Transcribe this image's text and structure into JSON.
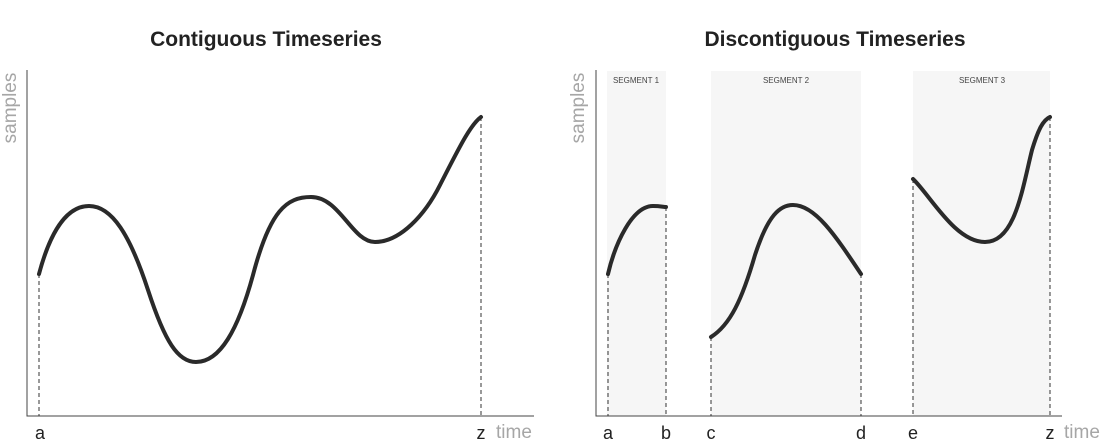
{
  "left_panel": {
    "title": "Contiguous Timeseries",
    "y_axis_label": "samples",
    "x_axis_label": "time",
    "tick_labels": [
      "a",
      "z"
    ]
  },
  "right_panel": {
    "title": "Discontiguous Timeseries",
    "y_axis_label": "samples",
    "x_axis_label": "time",
    "segments": [
      {
        "label": "SEGMENT 1"
      },
      {
        "label": "SEGMENT 2"
      },
      {
        "label": "SEGMENT 3"
      }
    ],
    "tick_labels": [
      "a",
      "b",
      "c",
      "d",
      "e",
      "z"
    ]
  },
  "colors": {
    "curve": "#2a2a2a",
    "segment_background": "#f6f6f6",
    "axis_label": "#a6a6a6"
  }
}
